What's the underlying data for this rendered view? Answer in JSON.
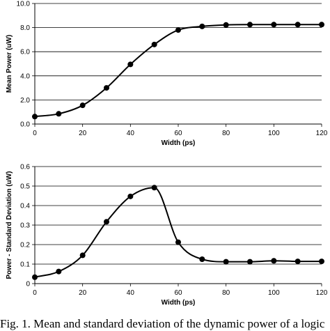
{
  "chart_data": [
    {
      "type": "line",
      "title": "",
      "xlabel": "Width (ps)",
      "ylabel": "Mean Power (uW)",
      "xlim": [
        0,
        120
      ],
      "ylim": [
        0,
        10
      ],
      "x_ticks": [
        "0",
        "20",
        "40",
        "60",
        "80",
        "100",
        "120"
      ],
      "y_ticks": [
        "0.0",
        "2.0",
        "4.0",
        "6.0",
        "8.0",
        "10.0"
      ],
      "grid": "horizontal",
      "legend": "none",
      "line_color": "#000000",
      "series": [
        {
          "x": [
            0,
            10,
            20,
            30,
            40,
            50,
            60,
            70,
            80,
            90,
            100,
            110,
            120
          ],
          "values": [
            0.62,
            0.85,
            1.55,
            3.0,
            4.95,
            6.6,
            7.8,
            8.1,
            8.22,
            8.25,
            8.25,
            8.25,
            8.25
          ]
        }
      ]
    },
    {
      "type": "line",
      "title": "",
      "xlabel": "Width (ps)",
      "ylabel": "Power - Standard Deviation (uW)",
      "xlim": [
        0,
        120
      ],
      "ylim": [
        0,
        0.6
      ],
      "x_ticks": [
        "0",
        "20",
        "40",
        "60",
        "80",
        "100",
        "120"
      ],
      "y_ticks": [
        "0",
        "0.1",
        "0.2",
        "0.3",
        "0.4",
        "0.5",
        "0.6"
      ],
      "grid": "horizontal",
      "legend": "none",
      "line_color": "#000000",
      "series": [
        {
          "x": [
            0,
            10,
            20,
            30,
            40,
            50,
            60,
            70,
            80,
            90,
            100,
            110,
            120
          ],
          "values": [
            0.033,
            0.062,
            0.145,
            0.317,
            0.447,
            0.492,
            0.212,
            0.125,
            0.112,
            0.112,
            0.117,
            0.114,
            0.114
          ]
        }
      ]
    }
  ],
  "caption": "Fig. 1. Mean and standard deviation of the dynamic power of a logic"
}
